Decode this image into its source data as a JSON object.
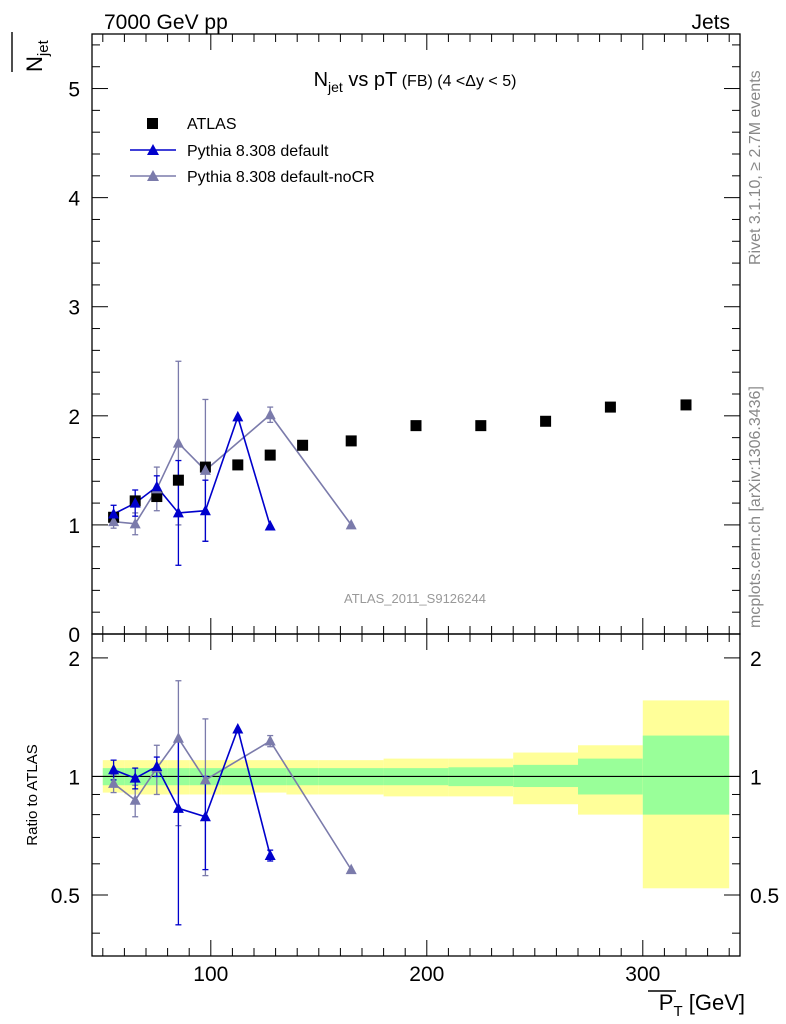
{
  "header": {
    "left": "7000 GeV pp",
    "right": "Jets"
  },
  "side_text": {
    "top": "Rivet 3.1.10, ≥ 2.7M events",
    "bottom": "mcplots.cern.ch [arXiv:1306.3436]"
  },
  "watermark": "ATLAS_2011_S9126244",
  "chart_data": [
    {
      "type": "scatter",
      "title": {
        "main": "N",
        "main_sub": "jet",
        "rest": " vs pT",
        "small": " (FB) (4 <Δy < 5)"
      },
      "ylabel": {
        "main": "N",
        "sub": "jet"
      },
      "xlabel": {
        "main": "P",
        "sub": "T",
        "unit": " [GeV]"
      },
      "xlim": [
        45,
        345
      ],
      "ylim": [
        0,
        5.5
      ],
      "yticks": [
        0,
        1,
        2,
        3,
        4,
        5
      ],
      "ytick_labels": [
        "0",
        "1",
        "2",
        "3",
        "4",
        "5"
      ],
      "colors": {
        "atlas": "#000000",
        "default": "#0000cc",
        "nocr": "#7b7bab"
      },
      "legend": {
        "placement": "top-left",
        "entries": [
          "ATLAS",
          "Pythia 8.308 default",
          "Pythia 8.308 default-noCR"
        ]
      },
      "series": [
        {
          "name": "ATLAS",
          "marker": "square",
          "x": [
            55,
            65,
            75,
            85,
            97.5,
            112.5,
            127.5,
            142.5,
            165,
            195,
            225,
            255,
            285,
            320
          ],
          "y": [
            1.07,
            1.22,
            1.26,
            1.41,
            1.53,
            1.55,
            1.64,
            1.73,
            1.77,
            1.91,
            1.91,
            1.95,
            2.08,
            2.1
          ]
        },
        {
          "name": "Pythia 8.308 default",
          "marker": "triangle",
          "x": [
            55,
            65,
            75,
            85,
            97.5,
            112.5,
            127.5
          ],
          "y": [
            1.1,
            1.2,
            1.35,
            1.11,
            1.13,
            1.99,
            0.99
          ],
          "yerr": [
            0.08,
            0.12,
            0.1,
            0.48,
            0.28,
            0.0,
            0.0
          ]
        },
        {
          "name": "Pythia 8.308 default-noCR",
          "marker": "triangle",
          "x": [
            55,
            65,
            75,
            85,
            97.5,
            127.5,
            165
          ],
          "y": [
            1.03,
            1.01,
            1.33,
            1.75,
            1.5,
            2.01,
            1.0
          ],
          "yerr": [
            0.06,
            0.1,
            0.2,
            0.75,
            0.65,
            0.07,
            0.0
          ]
        }
      ]
    },
    {
      "type": "scatter",
      "ylabel": "Ratio to ATLAS",
      "xlim": [
        45,
        345
      ],
      "ylim": [
        0.35,
        2.3
      ],
      "yscale": "log",
      "yticks": [
        0.5,
        1,
        2
      ],
      "ytick_labels": [
        "0.5",
        "1",
        "2"
      ],
      "xticks": [
        100,
        200,
        300
      ],
      "xtick_labels": [
        "100",
        "200",
        "300"
      ],
      "reference_line": 1,
      "bands": {
        "x_edges": [
          50,
          60,
          70,
          80,
          90,
          105,
          120,
          135,
          150,
          180,
          210,
          240,
          270,
          300,
          340
        ],
        "green_lo": [
          0.95,
          0.95,
          0.95,
          0.95,
          0.95,
          0.95,
          0.95,
          0.95,
          0.95,
          0.95,
          0.945,
          0.94,
          0.9,
          0.8
        ],
        "green_hi": [
          1.05,
          1.05,
          1.05,
          1.05,
          1.05,
          1.05,
          1.05,
          1.05,
          1.05,
          1.05,
          1.055,
          1.07,
          1.11,
          1.27
        ],
        "yellow_lo": [
          0.91,
          0.9,
          0.9,
          0.9,
          0.9,
          0.9,
          0.91,
          0.9,
          0.9,
          0.89,
          0.89,
          0.85,
          0.8,
          0.52
        ],
        "yellow_hi": [
          1.1,
          1.1,
          1.1,
          1.1,
          1.1,
          1.1,
          1.1,
          1.1,
          1.1,
          1.11,
          1.11,
          1.15,
          1.2,
          1.56
        ]
      },
      "series": [
        {
          "name": "Pythia 8.308 default",
          "x": [
            55,
            65,
            75,
            85,
            97.5,
            112.5,
            127.5
          ],
          "y": [
            1.04,
            0.99,
            1.06,
            0.83,
            0.79,
            1.32,
            0.63
          ],
          "yerr": [
            0.06,
            0.06,
            0.06,
            0.41,
            0.21,
            0.0,
            0.02
          ]
        },
        {
          "name": "Pythia 8.308 default-noCR",
          "x": [
            55,
            65,
            75,
            85,
            97.5,
            127.5,
            165
          ],
          "y": [
            0.96,
            0.87,
            1.05,
            1.25,
            0.98,
            1.23,
            0.58
          ],
          "yerr": [
            0.05,
            0.08,
            0.15,
            0.5,
            0.42,
            0.04,
            0.0
          ]
        }
      ]
    }
  ]
}
